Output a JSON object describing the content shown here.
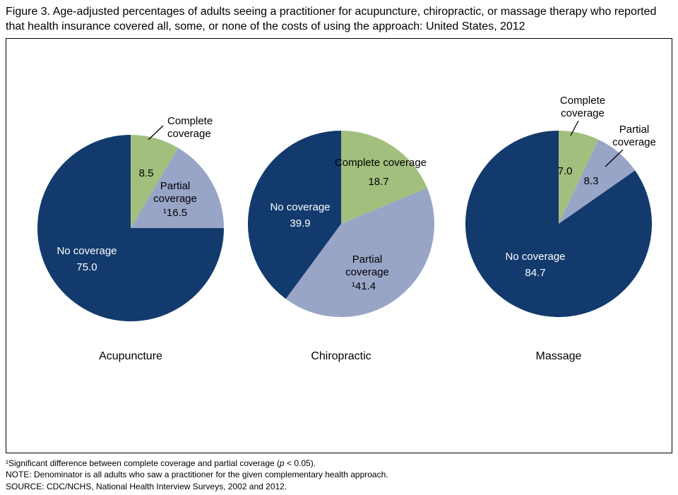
{
  "title": "Figure 3. Age-adjusted percentages of adults seeing a practitioner for acupuncture, chiropractic, or massage therapy who reported that health insurance covered all, some, or none of the costs of using the approach: United States, 2012",
  "colors": {
    "complete": "#a2bf7e",
    "partial": "#99a5c7",
    "none": "#123a6d",
    "label_dark": "#000000",
    "label_light": "#ffffff",
    "leader_line": "#000000"
  },
  "chart_data": [
    {
      "type": "pie",
      "category": "Acupuncture",
      "value_unit": "percent",
      "start_angle_deg": 0,
      "slices": [
        {
          "key": "complete",
          "label": "Complete coverage",
          "value": 8.5,
          "display": "8.5"
        },
        {
          "key": "partial",
          "label": "Partial coverage",
          "value": 16.5,
          "display": "¹16.5"
        },
        {
          "key": "none",
          "label": "No coverage",
          "value": 75.0,
          "display": "75.0"
        }
      ]
    },
    {
      "type": "pie",
      "category": "Chiropractic",
      "value_unit": "percent",
      "start_angle_deg": 0,
      "slices": [
        {
          "key": "complete",
          "label": "Complete coverage",
          "value": 18.7,
          "display": "18.7"
        },
        {
          "key": "partial",
          "label": "Partial coverage",
          "value": 41.4,
          "display": "¹41.4"
        },
        {
          "key": "none",
          "label": "No coverage",
          "value": 39.9,
          "display": "39.9"
        }
      ]
    },
    {
      "type": "pie",
      "category": "Massage",
      "value_unit": "percent",
      "start_angle_deg": 0,
      "slices": [
        {
          "key": "complete",
          "label": "Complete coverage",
          "value": 7.0,
          "display": "7.0"
        },
        {
          "key": "partial",
          "label": "Partial coverage",
          "value": 8.3,
          "display": "8.3"
        },
        {
          "key": "none",
          "label": "No coverage",
          "value": 84.7,
          "display": "84.7"
        }
      ]
    }
  ],
  "footnotes": {
    "line1_pre": "¹Significant difference between complete coverage and partial coverage (",
    "line1_italic": "p",
    "line1_post": " < 0.05).",
    "line2": "NOTE: Denominator is all adults who saw a practitioner for the given complementary health approach.",
    "line3": "SOURCE: CDC/NCHS, National Health Interview Surveys, 2002 and 2012."
  }
}
